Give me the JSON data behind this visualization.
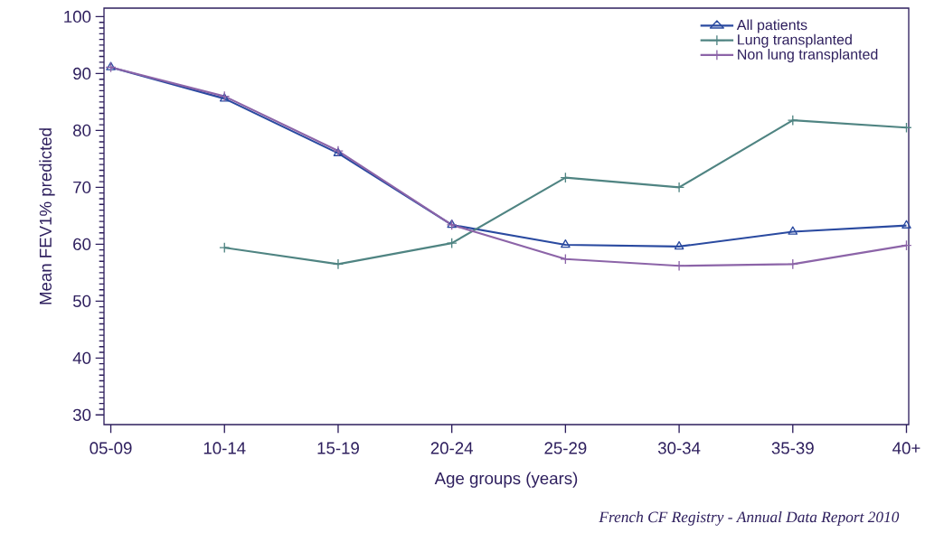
{
  "chart_data": {
    "type": "line",
    "xlabel": "Age groups (years)",
    "ylabel": "Mean FEV1% predicted",
    "annotations": [
      "French CF Registry - Annual Data Report 2010"
    ],
    "categories": [
      "05-09",
      "10-14",
      "15-19",
      "20-24",
      "25-29",
      "30-34",
      "35-39",
      "40+"
    ],
    "ylim": [
      28.3,
      101.5
    ],
    "yticks": [
      30,
      40,
      50,
      60,
      70,
      80,
      90,
      100
    ],
    "legend": "top right",
    "line_style": "solid",
    "series": [
      {
        "name": "All patients",
        "color": "#2a4aa0",
        "marker": "triangle",
        "values": [
          91.1,
          85.6,
          76.0,
          63.4,
          59.9,
          59.6,
          62.2,
          63.3
        ]
      },
      {
        "name": "Lung transplanted",
        "color": "#4f8482",
        "marker": "cross",
        "values": [
          null,
          59.4,
          56.5,
          60.2,
          71.7,
          70.0,
          81.8,
          80.5
        ]
      },
      {
        "name": "Non lung transplanted",
        "color": "#8c64a8",
        "marker": "cross",
        "values": [
          91.1,
          86.0,
          76.4,
          63.4,
          57.4,
          56.2,
          56.5,
          59.8
        ]
      }
    ]
  }
}
